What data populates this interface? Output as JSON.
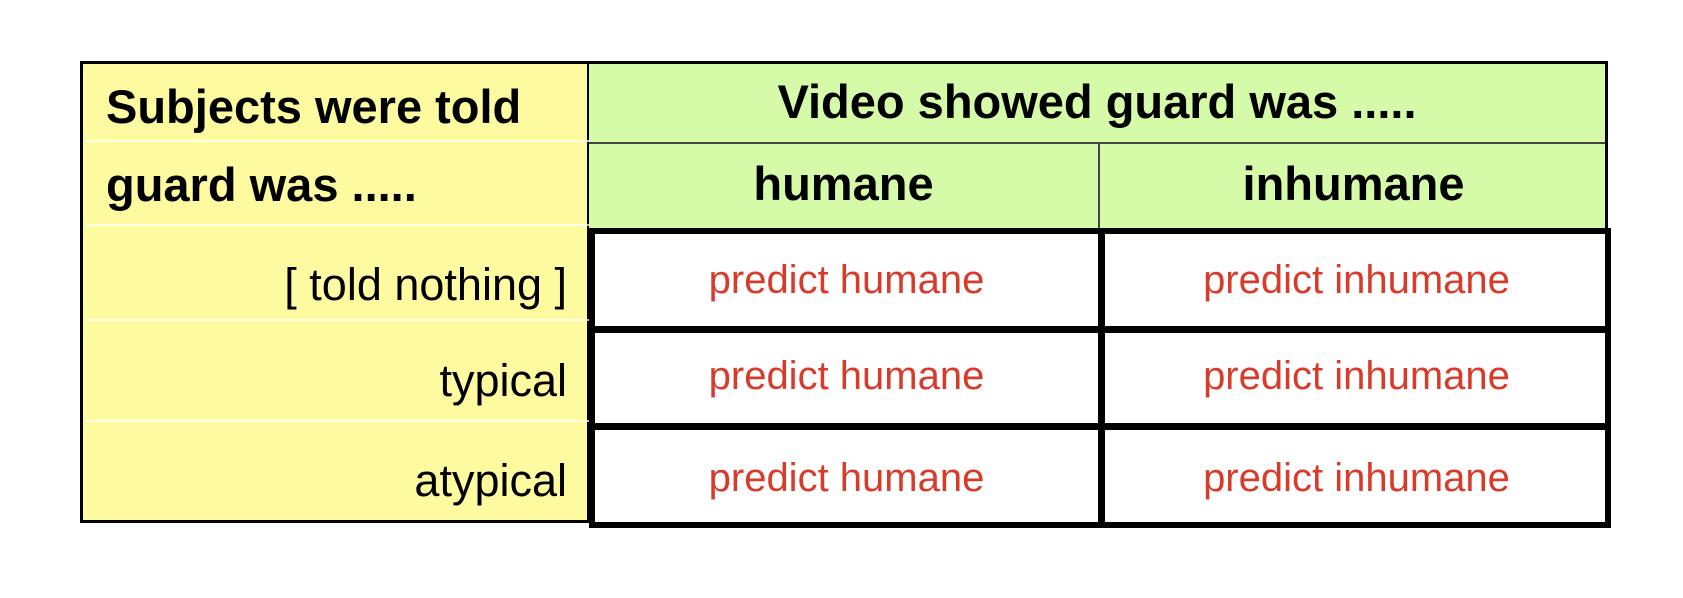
{
  "table": {
    "left_header": {
      "line1": "Subjects were told",
      "line2": "guard was ....."
    },
    "top_header": "Video showed guard was .....",
    "columns": [
      "humane",
      "inhumane"
    ],
    "rows": [
      {
        "label": "[ told nothing ]",
        "cells": [
          "predict humane",
          "predict inhumane"
        ]
      },
      {
        "label": "typical",
        "cells": [
          "predict humane",
          "predict inhumane"
        ]
      },
      {
        "label": "atypical",
        "cells": [
          "predict humane",
          "predict inhumane"
        ]
      }
    ]
  },
  "colors": {
    "left_panel": "#fdfaa0",
    "header_panel": "#d5fba8",
    "prediction_text": "#d93b2b"
  }
}
